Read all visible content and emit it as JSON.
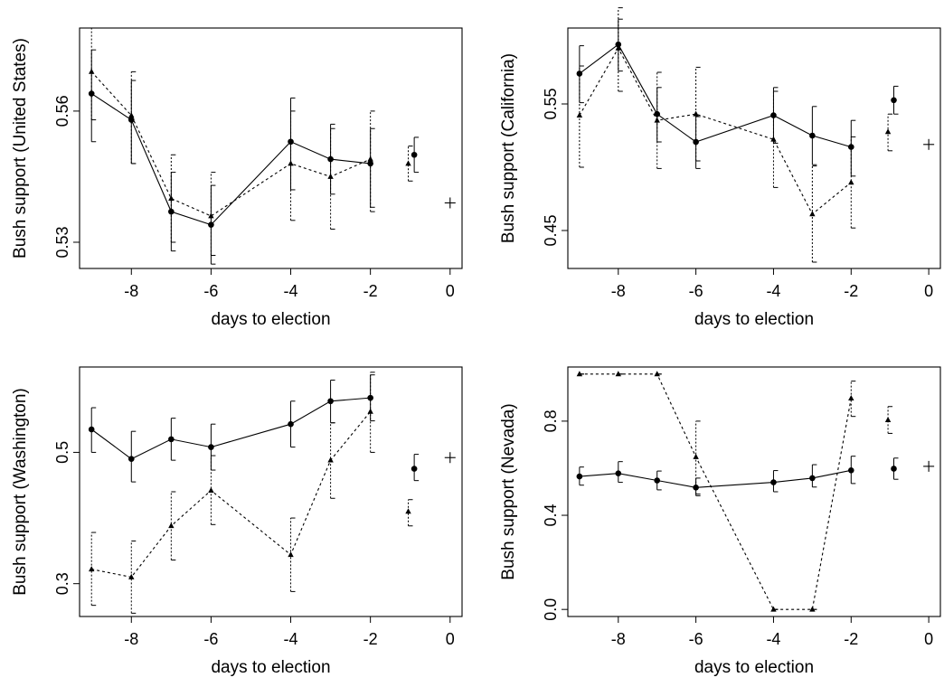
{
  "chart_data": [
    {
      "type": "line",
      "panel": "top-left",
      "xlabel": "days to election",
      "ylabel": "Bush support (United States)",
      "xlim": [
        -9.3,
        0.3
      ],
      "ylim": [
        0.524,
        0.579
      ],
      "xticks": [
        -8,
        -6,
        -4,
        -2,
        0
      ],
      "xtick_labels": [
        "-8",
        "-6",
        "-4",
        "-2",
        "0"
      ],
      "yticks": [
        0.53,
        0.56
      ],
      "ytick_labels": [
        "0.53",
        "0.56"
      ],
      "series": [
        {
          "style": "solid",
          "marker": "circle",
          "x": [
            -9,
            -8,
            -7,
            -6,
            -4,
            -3,
            -2
          ],
          "y": [
            0.564,
            0.558,
            0.537,
            0.534,
            0.553,
            0.549,
            0.548
          ],
          "lo": [
            0.553,
            0.548,
            0.528,
            0.525,
            0.542,
            0.541,
            0.538
          ],
          "hi": [
            0.574,
            0.567,
            0.546,
            0.543,
            0.563,
            0.557,
            0.556
          ]
        },
        {
          "style": "dashed",
          "marker": "triangle",
          "x": [
            -9,
            -8,
            -7,
            -6,
            -4,
            -3,
            -2
          ],
          "y": [
            0.569,
            0.559,
            0.54,
            0.536,
            0.548,
            0.545,
            0.549
          ],
          "lo": [
            0.558,
            0.548,
            0.53,
            0.527,
            0.535,
            0.533,
            0.537
          ],
          "hi": [
            0.579,
            0.569,
            0.55,
            0.546,
            0.56,
            0.556,
            0.56
          ]
        },
        {
          "style": "points",
          "marker": "circle",
          "x": [
            -0.9
          ],
          "y": [
            0.55
          ],
          "lo": [
            0.546
          ],
          "hi": [
            0.554
          ]
        },
        {
          "style": "points",
          "marker": "triangle",
          "x": [
            -1.05
          ],
          "y": [
            0.548
          ],
          "lo": [
            0.544
          ],
          "hi": [
            0.552
          ]
        },
        {
          "style": "points",
          "marker": "plus",
          "x": [
            0
          ],
          "y": [
            0.539
          ]
        }
      ]
    },
    {
      "type": "line",
      "panel": "top-right",
      "xlabel": "days to election",
      "ylabel": "Bush support (California)",
      "xlim": [
        -9.3,
        0.3
      ],
      "ylim": [
        0.42,
        0.61
      ],
      "xticks": [
        -8,
        -6,
        -4,
        -2,
        0
      ],
      "xtick_labels": [
        "-8",
        "-6",
        "-4",
        "-2",
        "0"
      ],
      "yticks": [
        0.45,
        0.55
      ],
      "ytick_labels": [
        "0.45",
        "0.55"
      ],
      "series": [
        {
          "style": "solid",
          "marker": "circle",
          "x": [
            -9,
            -8,
            -7,
            -6,
            -4,
            -3,
            -2
          ],
          "y": [
            0.574,
            0.597,
            0.542,
            0.52,
            0.541,
            0.525,
            0.516
          ],
          "lo": [
            0.551,
            0.576,
            0.52,
            0.499,
            0.519,
            0.502,
            0.493
          ],
          "hi": [
            0.596,
            0.617,
            0.563,
            0.54,
            0.563,
            0.548,
            0.537
          ]
        },
        {
          "style": "dashed",
          "marker": "triangle",
          "x": [
            -9,
            -8,
            -7,
            -6,
            -4,
            -3,
            -2
          ],
          "y": [
            0.541,
            0.594,
            0.537,
            0.542,
            0.522,
            0.463,
            0.488
          ],
          "lo": [
            0.5,
            0.56,
            0.499,
            0.505,
            0.484,
            0.425,
            0.452
          ],
          "hi": [
            0.58,
            0.626,
            0.575,
            0.579,
            0.56,
            0.501,
            0.524
          ]
        },
        {
          "style": "points",
          "marker": "circle",
          "x": [
            -0.9
          ],
          "y": [
            0.553
          ],
          "lo": [
            0.542
          ],
          "hi": [
            0.564
          ]
        },
        {
          "style": "points",
          "marker": "triangle",
          "x": [
            -1.05
          ],
          "y": [
            0.528
          ],
          "lo": [
            0.513
          ],
          "hi": [
            0.542
          ]
        },
        {
          "style": "points",
          "marker": "plus",
          "x": [
            0
          ],
          "y": [
            0.518
          ]
        }
      ]
    },
    {
      "type": "line",
      "panel": "bottom-left",
      "xlabel": "days to election",
      "ylabel": "Bush support (Washington)",
      "xlim": [
        -9.3,
        0.3
      ],
      "ylim": [
        0.25,
        0.63
      ],
      "xticks": [
        -8,
        -6,
        -4,
        -2,
        0
      ],
      "xtick_labels": [
        "-8",
        "-6",
        "-4",
        "-2",
        "0"
      ],
      "yticks": [
        0.3,
        0.5
      ],
      "ytick_labels": [
        "0.3",
        "0.5"
      ],
      "series": [
        {
          "style": "solid",
          "marker": "circle",
          "x": [
            -9,
            -8,
            -7,
            -6,
            -4,
            -3,
            -2
          ],
          "y": [
            0.535,
            0.49,
            0.52,
            0.508,
            0.543,
            0.578,
            0.583
          ],
          "lo": [
            0.5,
            0.455,
            0.488,
            0.473,
            0.508,
            0.545,
            0.548
          ],
          "hi": [
            0.568,
            0.532,
            0.552,
            0.543,
            0.578,
            0.61,
            0.618
          ]
        },
        {
          "style": "dashed",
          "marker": "triangle",
          "x": [
            -9,
            -8,
            -7,
            -6,
            -4,
            -3,
            -2
          ],
          "y": [
            0.322,
            0.31,
            0.388,
            0.442,
            0.344,
            0.488,
            0.562
          ],
          "lo": [
            0.267,
            0.255,
            0.336,
            0.39,
            0.288,
            0.43,
            0.5
          ],
          "hi": [
            0.378,
            0.365,
            0.44,
            0.495,
            0.4,
            0.545,
            0.622
          ]
        },
        {
          "style": "points",
          "marker": "circle",
          "x": [
            -0.9
          ],
          "y": [
            0.475
          ],
          "lo": [
            0.457
          ],
          "hi": [
            0.497
          ]
        },
        {
          "style": "points",
          "marker": "triangle",
          "x": [
            -1.05
          ],
          "y": [
            0.41
          ],
          "lo": [
            0.388
          ],
          "hi": [
            0.428
          ]
        },
        {
          "style": "points",
          "marker": "plus",
          "x": [
            0
          ],
          "y": [
            0.492
          ]
        }
      ]
    },
    {
      "type": "line",
      "panel": "bottom-right",
      "xlabel": "days to election",
      "ylabel": "Bush support (Nevada)",
      "xlim": [
        -9.3,
        0.3
      ],
      "ylim": [
        -0.03,
        1.03
      ],
      "xticks": [
        -8,
        -6,
        -4,
        -2,
        0
      ],
      "xtick_labels": [
        "-8",
        "-6",
        "-4",
        "-2",
        "0"
      ],
      "yticks": [
        0.0,
        0.4,
        0.8
      ],
      "ytick_labels": [
        "0.0",
        "0.4",
        "0.8"
      ],
      "series": [
        {
          "style": "solid",
          "marker": "circle",
          "x": [
            -9,
            -8,
            -7,
            -6,
            -4,
            -3,
            -2
          ],
          "y": [
            0.565,
            0.578,
            0.548,
            0.518,
            0.54,
            0.558,
            0.591
          ],
          "lo": [
            0.528,
            0.54,
            0.508,
            0.483,
            0.5,
            0.52,
            0.535
          ],
          "hi": [
            0.605,
            0.628,
            0.588,
            0.558,
            0.59,
            0.615,
            0.651
          ]
        },
        {
          "style": "dashed",
          "marker": "triangle",
          "x": [
            -9,
            -8,
            -7,
            -6,
            -4,
            -3,
            -2
          ],
          "y": [
            1.0,
            1.0,
            1.0,
            0.648,
            0.0,
            0.0,
            0.897
          ],
          "lo": [
            1.0,
            1.0,
            1.0,
            0.49,
            0.0,
            0.0,
            0.82
          ],
          "hi": [
            1.0,
            1.0,
            1.0,
            0.8,
            0.0,
            0.0,
            0.97
          ]
        },
        {
          "style": "points",
          "marker": "circle",
          "x": [
            -0.9
          ],
          "y": [
            0.598
          ],
          "lo": [
            0.553
          ],
          "hi": [
            0.643
          ]
        },
        {
          "style": "points",
          "marker": "triangle",
          "x": [
            -1.05
          ],
          "y": [
            0.805
          ],
          "lo": [
            0.748
          ],
          "hi": [
            0.862
          ]
        },
        {
          "style": "points",
          "marker": "plus",
          "x": [
            0
          ],
          "y": [
            0.608
          ]
        }
      ]
    }
  ]
}
